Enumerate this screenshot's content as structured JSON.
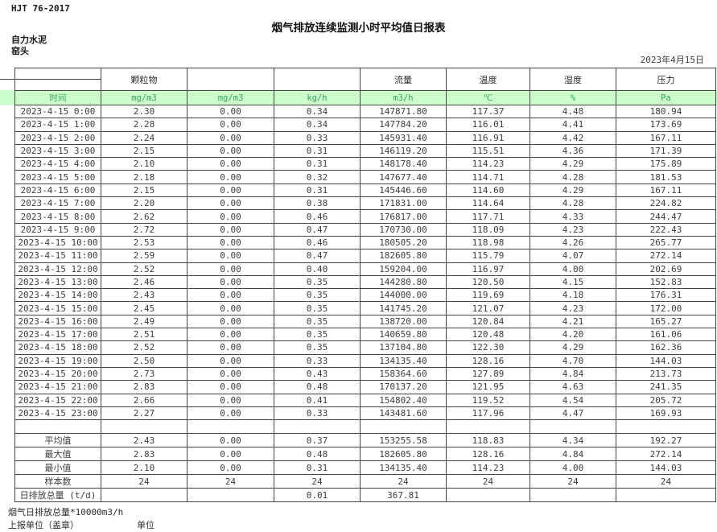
{
  "header": {
    "doc_code": "HJT  76-2017",
    "title": "烟气排放连续监测小时平均值日报表",
    "company": "自力水泥",
    "location": "窑头",
    "date": "2023年4月15日"
  },
  "table": {
    "group_headers": [
      "",
      "颗粒物",
      "",
      "",
      "流量",
      "温度",
      "湿度",
      "压力"
    ],
    "unit_row": [
      "时间",
      "mg/m3",
      "mg/m3",
      "kg/h",
      "m3/h",
      "℃",
      "%",
      "Pa"
    ],
    "rows": [
      [
        "2023-4-15 0:00",
        "2.30",
        "0.00",
        "0.34",
        "147871.80",
        "117.37",
        "4.48",
        "180.94"
      ],
      [
        "2023-4-15 1:00",
        "2.28",
        "0.00",
        "0.34",
        "147784.20",
        "116.01",
        "4.41",
        "173.69"
      ],
      [
        "2023-4-15 2:00",
        "2.24",
        "0.00",
        "0.33",
        "145931.40",
        "116.91",
        "4.42",
        "167.11"
      ],
      [
        "2023-4-15 3:00",
        "2.15",
        "0.00",
        "0.31",
        "146119.20",
        "115.51",
        "4.36",
        "171.39"
      ],
      [
        "2023-4-15 4:00",
        "2.10",
        "0.00",
        "0.31",
        "148178.40",
        "114.23",
        "4.29",
        "175.89"
      ],
      [
        "2023-4-15 5:00",
        "2.18",
        "0.00",
        "0.32",
        "147677.40",
        "114.71",
        "4.28",
        "181.53"
      ],
      [
        "2023-4-15 6:00",
        "2.15",
        "0.00",
        "0.31",
        "145446.60",
        "114.60",
        "4.29",
        "167.11"
      ],
      [
        "2023-4-15 7:00",
        "2.20",
        "0.00",
        "0.38",
        "171831.00",
        "114.64",
        "4.28",
        "224.82"
      ],
      [
        "2023-4-15 8:00",
        "2.62",
        "0.00",
        "0.46",
        "176817.00",
        "117.71",
        "4.33",
        "244.47"
      ],
      [
        "2023-4-15 9:00",
        "2.72",
        "0.00",
        "0.47",
        "170730.00",
        "118.09",
        "4.23",
        "222.43"
      ],
      [
        "2023-4-15 10:00",
        "2.53",
        "0.00",
        "0.46",
        "180505.20",
        "118.98",
        "4.26",
        "265.77"
      ],
      [
        "2023-4-15 11:00",
        "2.59",
        "0.00",
        "0.47",
        "182605.80",
        "115.79",
        "4.07",
        "272.14"
      ],
      [
        "2023-4-15 12:00",
        "2.52",
        "0.00",
        "0.40",
        "159204.00",
        "116.97",
        "4.00",
        "202.69"
      ],
      [
        "2023-4-15 13:00",
        "2.46",
        "0.00",
        "0.35",
        "144280.80",
        "120.50",
        "4.15",
        "152.83"
      ],
      [
        "2023-4-15 14:00",
        "2.43",
        "0.00",
        "0.35",
        "144000.00",
        "119.69",
        "4.18",
        "176.31"
      ],
      [
        "2023-4-15 15:00",
        "2.45",
        "0.00",
        "0.35",
        "141745.20",
        "121.07",
        "4.23",
        "172.00"
      ],
      [
        "2023-4-15 16:00",
        "2.49",
        "0.00",
        "0.35",
        "138720.00",
        "120.84",
        "4.21",
        "165.27"
      ],
      [
        "2023-4-15 17:00",
        "2.51",
        "0.00",
        "0.35",
        "140659.80",
        "120.48",
        "4.20",
        "161.06"
      ],
      [
        "2023-4-15 18:00",
        "2.52",
        "0.00",
        "0.35",
        "137104.80",
        "122.30",
        "4.29",
        "162.36"
      ],
      [
        "2023-4-15 19:00",
        "2.50",
        "0.00",
        "0.33",
        "134135.40",
        "128.16",
        "4.70",
        "144.03"
      ],
      [
        "2023-4-15 20:00",
        "2.73",
        "0.00",
        "0.43",
        "158364.60",
        "127.89",
        "4.84",
        "213.73"
      ],
      [
        "2023-4-15 21:00",
        "2.83",
        "0.00",
        "0.48",
        "170137.20",
        "121.95",
        "4.63",
        "241.35"
      ],
      [
        "2023-4-15 22:00",
        "2.66",
        "0.00",
        "0.41",
        "154802.40",
        "119.52",
        "4.54",
        "205.72"
      ],
      [
        "2023-4-15 23:00",
        "2.27",
        "0.00",
        "0.33",
        "143481.60",
        "117.96",
        "4.47",
        "169.93"
      ]
    ],
    "summary_rows": [
      [
        "平均值",
        "2.43",
        "0.00",
        "0.37",
        "153255.58",
        "118.83",
        "4.34",
        "192.27"
      ],
      [
        "最大值",
        "2.83",
        "0.00",
        "0.48",
        "182605.80",
        "128.16",
        "4.84",
        "272.14"
      ],
      [
        "最小值",
        "2.10",
        "0.00",
        "0.31",
        "134135.40",
        "114.23",
        "4.00",
        "144.03"
      ],
      [
        "样本数",
        "24",
        "24",
        "24",
        "24",
        "24",
        "24",
        "24"
      ],
      [
        "日排放总量 (t/d)",
        "",
        "",
        "0.01",
        "367.81",
        "",
        "",
        ""
      ]
    ]
  },
  "footer": {
    "note": "烟气日排放总量*10000m3/h",
    "report_unit_label": "上报单位（盖章）",
    "unit_label": "单位"
  },
  "colors": {
    "unit_row_fill": "#ccffcc",
    "unit_row_text": "#3aa05f",
    "border": "#454545",
    "body_text": "#3d3d3d"
  }
}
